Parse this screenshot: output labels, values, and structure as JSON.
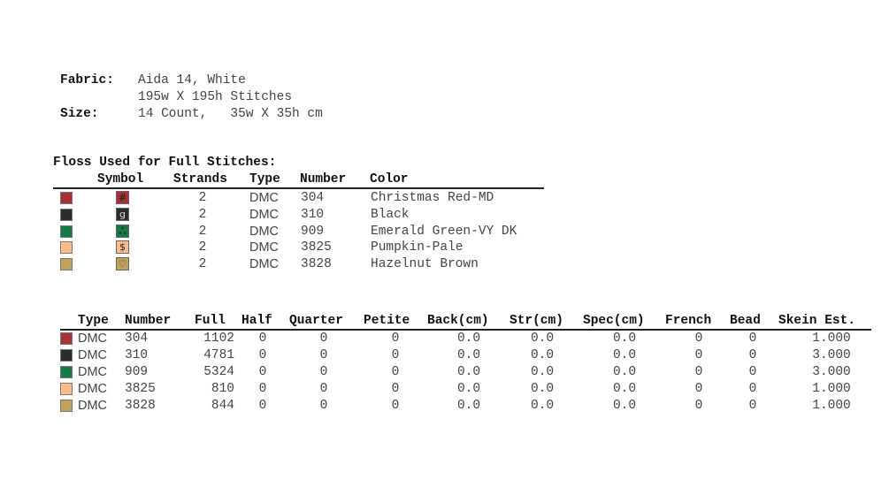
{
  "fabric": {
    "fabric_label": "Fabric:",
    "fabric_value": "Aida 14, White",
    "stitches": "195w X 195h Stitches",
    "size_label": "Size:",
    "size_value": "14 Count,   35w X 35h cm"
  },
  "floss": {
    "title": "Floss Used for Full Stitches:",
    "headers": [
      "Symbol",
      "Strands",
      "Type",
      "Number",
      "Color"
    ],
    "rows": [
      {
        "swatch": "#a83232",
        "symbol": "#",
        "symbol_color": "#222",
        "strands": "2",
        "type": "DMC",
        "number": "304",
        "color": "Christmas Red-MD"
      },
      {
        "swatch": "#2b2b27",
        "symbol": "g",
        "symbol_color": "#ddd",
        "strands": "2",
        "type": "DMC",
        "number": "310",
        "color": "Black"
      },
      {
        "swatch": "#167a48",
        "symbol": "ஃ",
        "symbol_color": "#111",
        "strands": "2",
        "type": "DMC",
        "number": "909",
        "color": "Emerald Green-VY DK"
      },
      {
        "swatch": "#fbbd88",
        "symbol": "$",
        "symbol_color": "#222",
        "strands": "2",
        "type": "DMC",
        "number": "3825",
        "color": "Pumpkin-Pale"
      },
      {
        "swatch": "#c2a15e",
        "symbol": "♡",
        "symbol_color": "#333",
        "strands": "2",
        "type": "DMC",
        "number": "3828",
        "color": "Hazelnut Brown"
      }
    ]
  },
  "usage": {
    "headers": [
      "Type",
      "Number",
      "Full",
      "Half",
      "Quarter",
      "Petite",
      "Back(cm)",
      "Str(cm)",
      "Spec(cm)",
      "French",
      "Bead",
      "Skein Est."
    ],
    "rows": [
      {
        "swatch": "#a83232",
        "cells": [
          "DMC",
          "304",
          "1102",
          "0",
          "0",
          "0",
          "0.0",
          "0.0",
          "0.0",
          "0",
          "0",
          "1.000"
        ]
      },
      {
        "swatch": "#2b2b27",
        "cells": [
          "DMC",
          "310",
          "4781",
          "0",
          "0",
          "0",
          "0.0",
          "0.0",
          "0.0",
          "0",
          "0",
          "3.000"
        ]
      },
      {
        "swatch": "#167a48",
        "cells": [
          "DMC",
          "909",
          "5324",
          "0",
          "0",
          "0",
          "0.0",
          "0.0",
          "0.0",
          "0",
          "0",
          "3.000"
        ]
      },
      {
        "swatch": "#fbbd88",
        "cells": [
          "DMC",
          "3825",
          "810",
          "0",
          "0",
          "0",
          "0.0",
          "0.0",
          "0.0",
          "0",
          "0",
          "1.000"
        ]
      },
      {
        "swatch": "#c2a15e",
        "cells": [
          "DMC",
          "3828",
          "844",
          "0",
          "0",
          "0",
          "0.0",
          "0.0",
          "0.0",
          "0",
          "0",
          "1.000"
        ]
      }
    ]
  }
}
